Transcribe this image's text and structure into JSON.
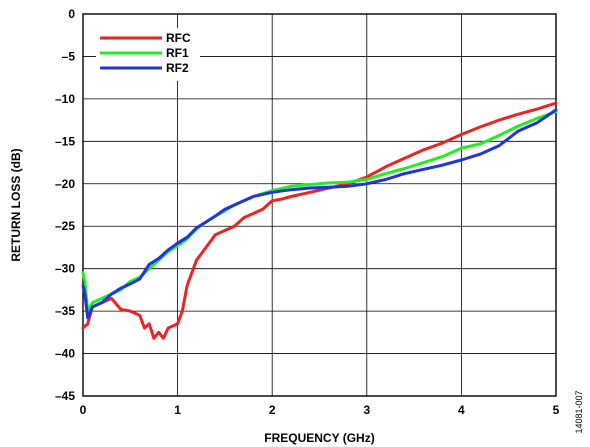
{
  "chart_data": {
    "type": "line",
    "title": "",
    "xlabel": "FREQUENCY (GHz)",
    "ylabel": "RETURN LOSS (dB)",
    "xlim": [
      0,
      5
    ],
    "ylim": [
      -45,
      0
    ],
    "xticks": [
      0,
      1,
      2,
      3,
      4,
      5
    ],
    "yticks": [
      0,
      -5,
      -10,
      -15,
      -20,
      -25,
      -30,
      -35,
      -40,
      -45
    ],
    "xtick_labels": [
      "0",
      "1",
      "2",
      "3",
      "4",
      "5"
    ],
    "ytick_labels": [
      "0",
      "–5",
      "–10",
      "–15",
      "–20",
      "–25",
      "–30",
      "–35",
      "–40",
      "–45"
    ],
    "grid": true,
    "legend_position": "top-left",
    "series": [
      {
        "name": "RFC",
        "color": "#ee2222",
        "x": [
          0,
          0.05,
          0.1,
          0.2,
          0.3,
          0.4,
          0.5,
          0.6,
          0.65,
          0.7,
          0.75,
          0.8,
          0.85,
          0.9,
          1.0,
          1.05,
          1.1,
          1.2,
          1.3,
          1.4,
          1.5,
          1.6,
          1.7,
          1.8,
          1.9,
          2.0,
          2.1,
          2.2,
          2.4,
          2.6,
          2.8,
          3.0,
          3.2,
          3.4,
          3.6,
          3.8,
          4.0,
          4.2,
          4.4,
          4.6,
          4.8,
          5.0
        ],
        "y": [
          -37,
          -36.5,
          -34.5,
          -34,
          -33.5,
          -34.8,
          -35,
          -35.5,
          -37,
          -36.5,
          -38.2,
          -37.5,
          -38.2,
          -37,
          -36.5,
          -35,
          -32,
          -29,
          -27.5,
          -26,
          -25.5,
          -25,
          -24,
          -23.5,
          -23,
          -22,
          -21.8,
          -21.5,
          -21,
          -20.5,
          -20,
          -19.2,
          -18,
          -17,
          -16,
          -15.2,
          -14.2,
          -13.3,
          -12.5,
          -11.8,
          -11.2,
          -10.5
        ]
      },
      {
        "name": "RF1",
        "color": "#22ee22",
        "x": [
          0,
          0.02,
          0.05,
          0.1,
          0.2,
          0.3,
          0.4,
          0.5,
          0.6,
          0.7,
          0.8,
          0.9,
          1.0,
          1.1,
          1.2,
          1.3,
          1.4,
          1.5,
          1.6,
          1.8,
          2.0,
          2.2,
          2.4,
          2.6,
          2.8,
          3.0,
          3.2,
          3.4,
          3.6,
          3.8,
          4.0,
          4.2,
          4.4,
          4.6,
          4.8,
          5.0
        ],
        "y": [
          -30.5,
          -31.5,
          -35,
          -34,
          -33.5,
          -33,
          -32.5,
          -31.5,
          -31,
          -30,
          -29,
          -28,
          -27.3,
          -26.5,
          -25.3,
          -24.5,
          -23.8,
          -23.2,
          -22.5,
          -21.5,
          -20.8,
          -20.3,
          -20.1,
          -19.9,
          -19.8,
          -19.5,
          -18.8,
          -18.2,
          -17.5,
          -16.8,
          -15.8,
          -15.3,
          -14.3,
          -13.2,
          -12.3,
          -11.5
        ]
      },
      {
        "name": "RF2",
        "color": "#2233dd",
        "x": [
          0,
          0.02,
          0.05,
          0.1,
          0.2,
          0.3,
          0.4,
          0.5,
          0.6,
          0.7,
          0.8,
          0.9,
          1.0,
          1.1,
          1.2,
          1.3,
          1.4,
          1.5,
          1.6,
          1.8,
          2.0,
          2.2,
          2.4,
          2.6,
          2.8,
          3.0,
          3.2,
          3.4,
          3.6,
          3.8,
          4.0,
          4.2,
          4.4,
          4.6,
          4.8,
          5.0
        ],
        "y": [
          -32,
          -33,
          -35.8,
          -34.5,
          -34,
          -33,
          -32.3,
          -31.8,
          -31.2,
          -29.5,
          -28.8,
          -27.8,
          -27,
          -26.3,
          -25.2,
          -24.5,
          -23.8,
          -23,
          -22.5,
          -21.5,
          -21,
          -20.7,
          -20.5,
          -20.4,
          -20.3,
          -20,
          -19.5,
          -18.8,
          -18.3,
          -17.8,
          -17.2,
          -16.5,
          -15.5,
          -13.8,
          -12.8,
          -11.3
        ]
      }
    ]
  },
  "figure_id": "14081-007"
}
